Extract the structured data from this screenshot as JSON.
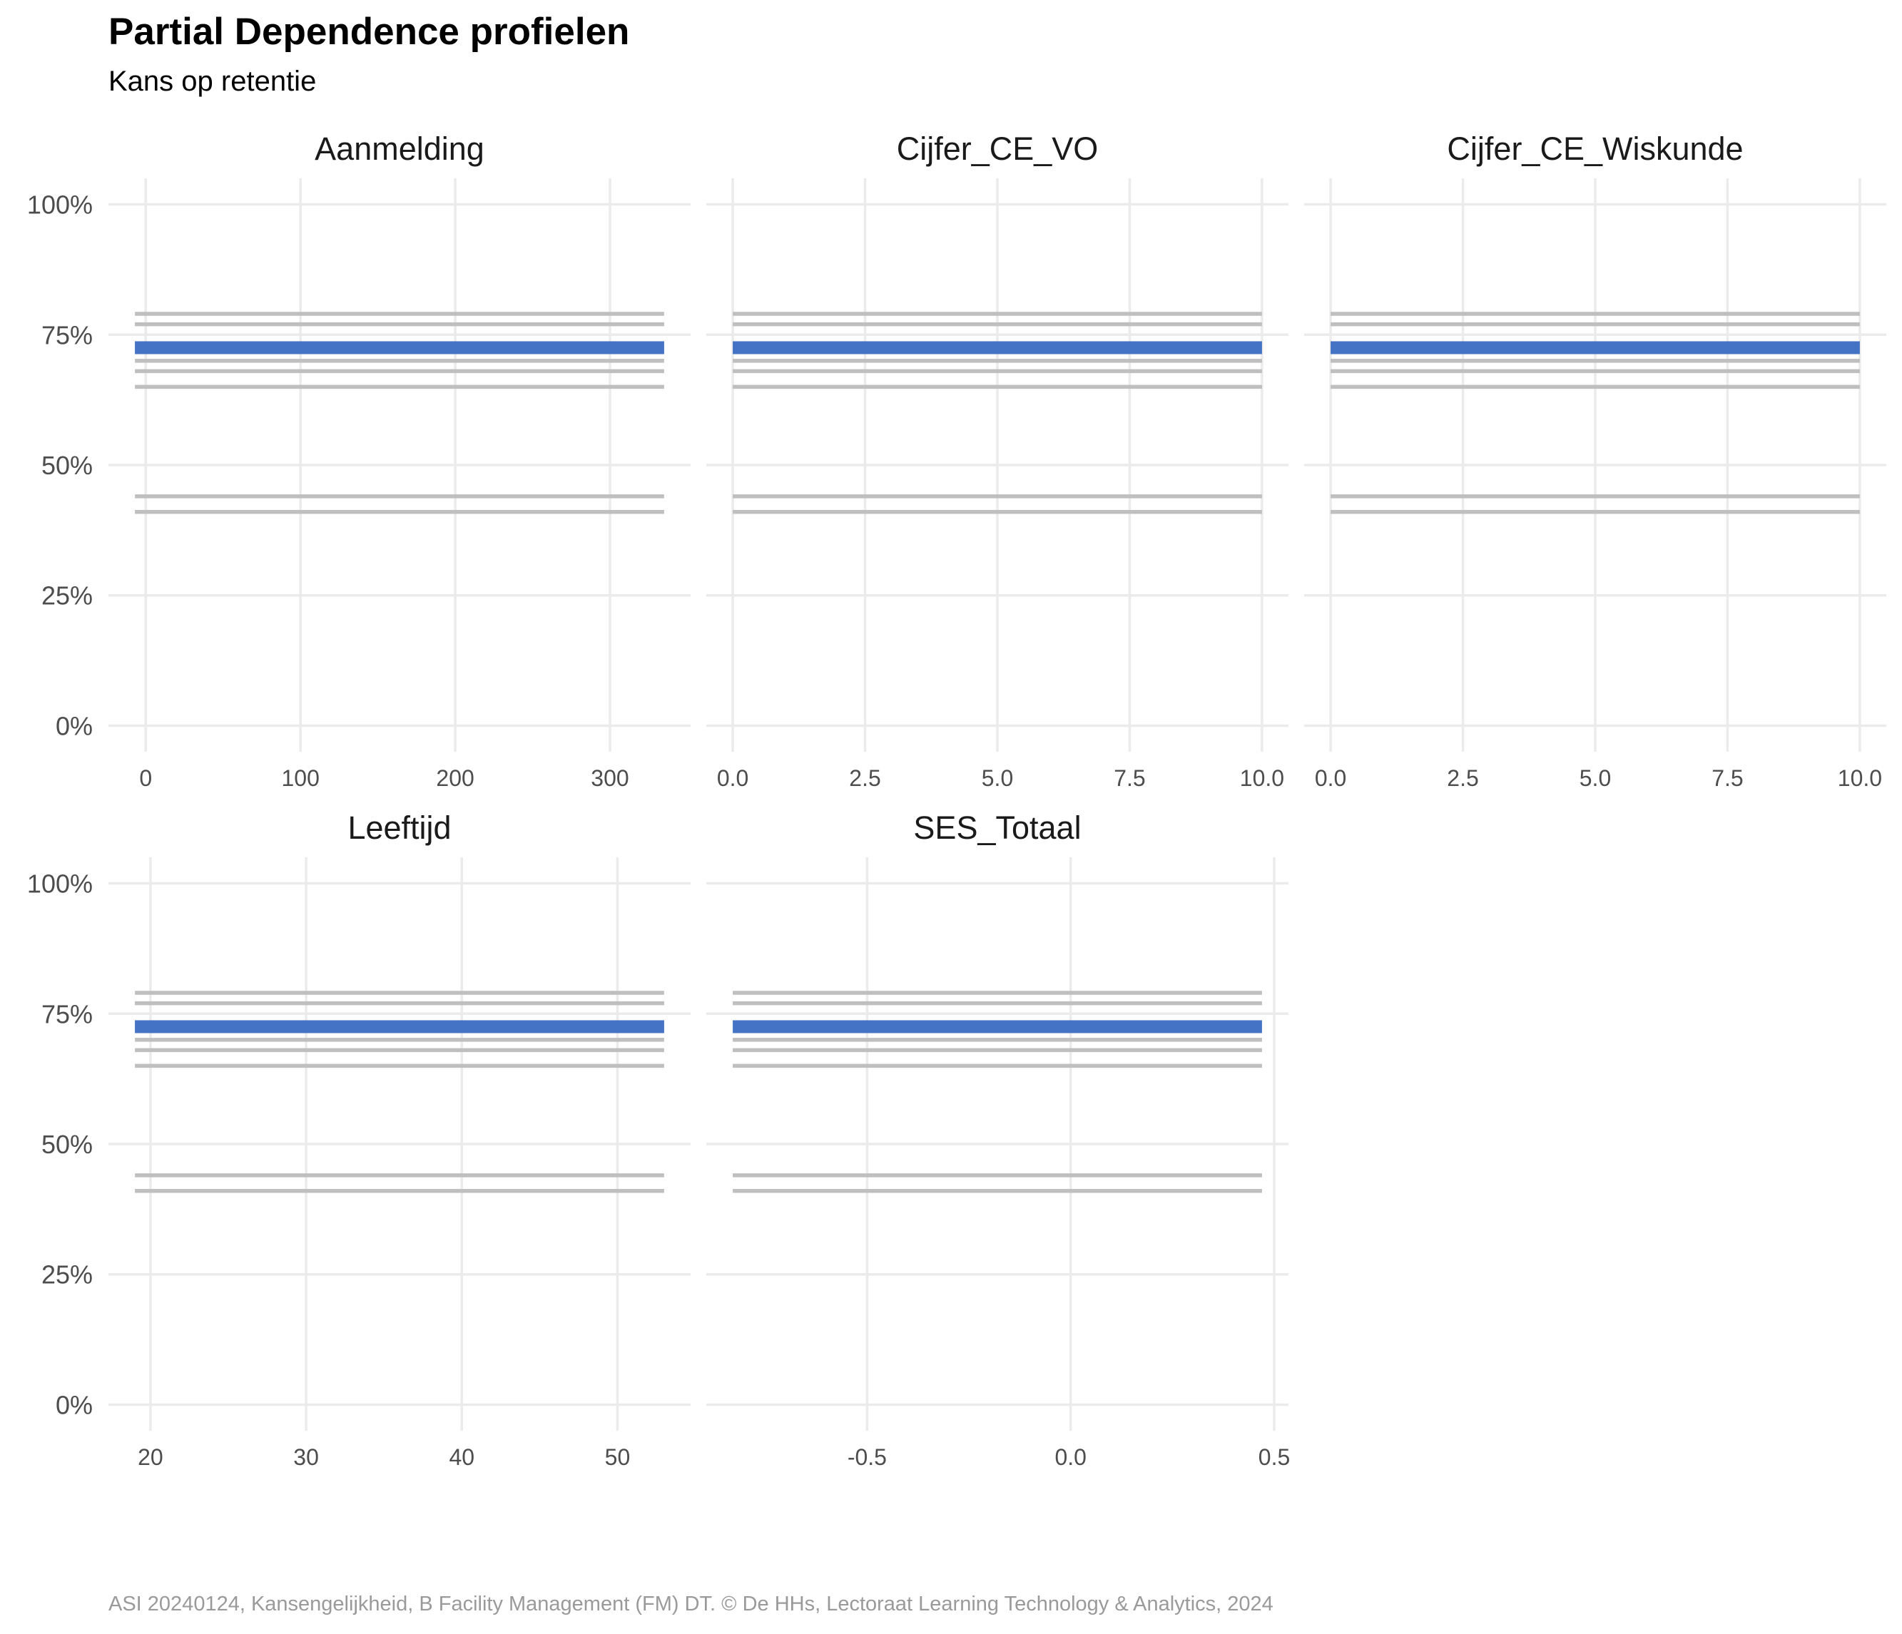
{
  "title": "Partial Dependence profielen",
  "subtitle": "Kans op retentie",
  "caption": "ASI 20240124, Kansengelijkheid, B Facility Management (FM) DT. © De HHs, Lectoraat Learning Technology & Analytics, 2024",
  "colors": {
    "highlight": "#4472c4",
    "profile": "#bfbfbf",
    "grid": "#ebebeb",
    "text": "#4d4d4d"
  },
  "chart_data": {
    "type": "line",
    "y_axis": {
      "ylim": [
        0,
        1
      ],
      "ticks": [
        0,
        0.25,
        0.5,
        0.75,
        1
      ],
      "tick_labels": [
        "0%",
        "25%",
        "50%",
        "75%",
        "100%"
      ]
    },
    "grid": true,
    "background_profiles": [
      0.79,
      0.77,
      0.7,
      0.68,
      0.65,
      0.44,
      0.41
    ],
    "highlight_profile": 0.725,
    "panels": [
      {
        "title": "Aanmelding",
        "x_range": [
          -7,
          335
        ],
        "x_ticks": [
          0,
          100,
          200,
          300
        ],
        "x_tick_labels": [
          "0",
          "100",
          "200",
          "300"
        ]
      },
      {
        "title": "Cijfer_CE_VO",
        "x_range": [
          0,
          10
        ],
        "x_ticks": [
          0,
          2.5,
          5,
          7.5,
          10
        ],
        "x_tick_labels": [
          "0.0",
          "2.5",
          "5.0",
          "7.5",
          "10.0"
        ]
      },
      {
        "title": "Cijfer_CE_Wiskunde",
        "x_range": [
          0,
          10
        ],
        "x_ticks": [
          0,
          2.5,
          5,
          7.5,
          10
        ],
        "x_tick_labels": [
          "0.0",
          "2.5",
          "5.0",
          "7.5",
          "10.0"
        ]
      },
      {
        "title": "Leeftijd",
        "x_range": [
          19,
          53
        ],
        "x_ticks": [
          20,
          30,
          40,
          50
        ],
        "x_tick_labels": [
          "20",
          "30",
          "40",
          "50"
        ]
      },
      {
        "title": "SES_Totaal",
        "x_range": [
          -0.83,
          0.47
        ],
        "x_ticks": [
          -0.5,
          0,
          0.5
        ],
        "x_tick_labels": [
          "-0.5",
          "0.0",
          "0.5"
        ]
      }
    ]
  }
}
